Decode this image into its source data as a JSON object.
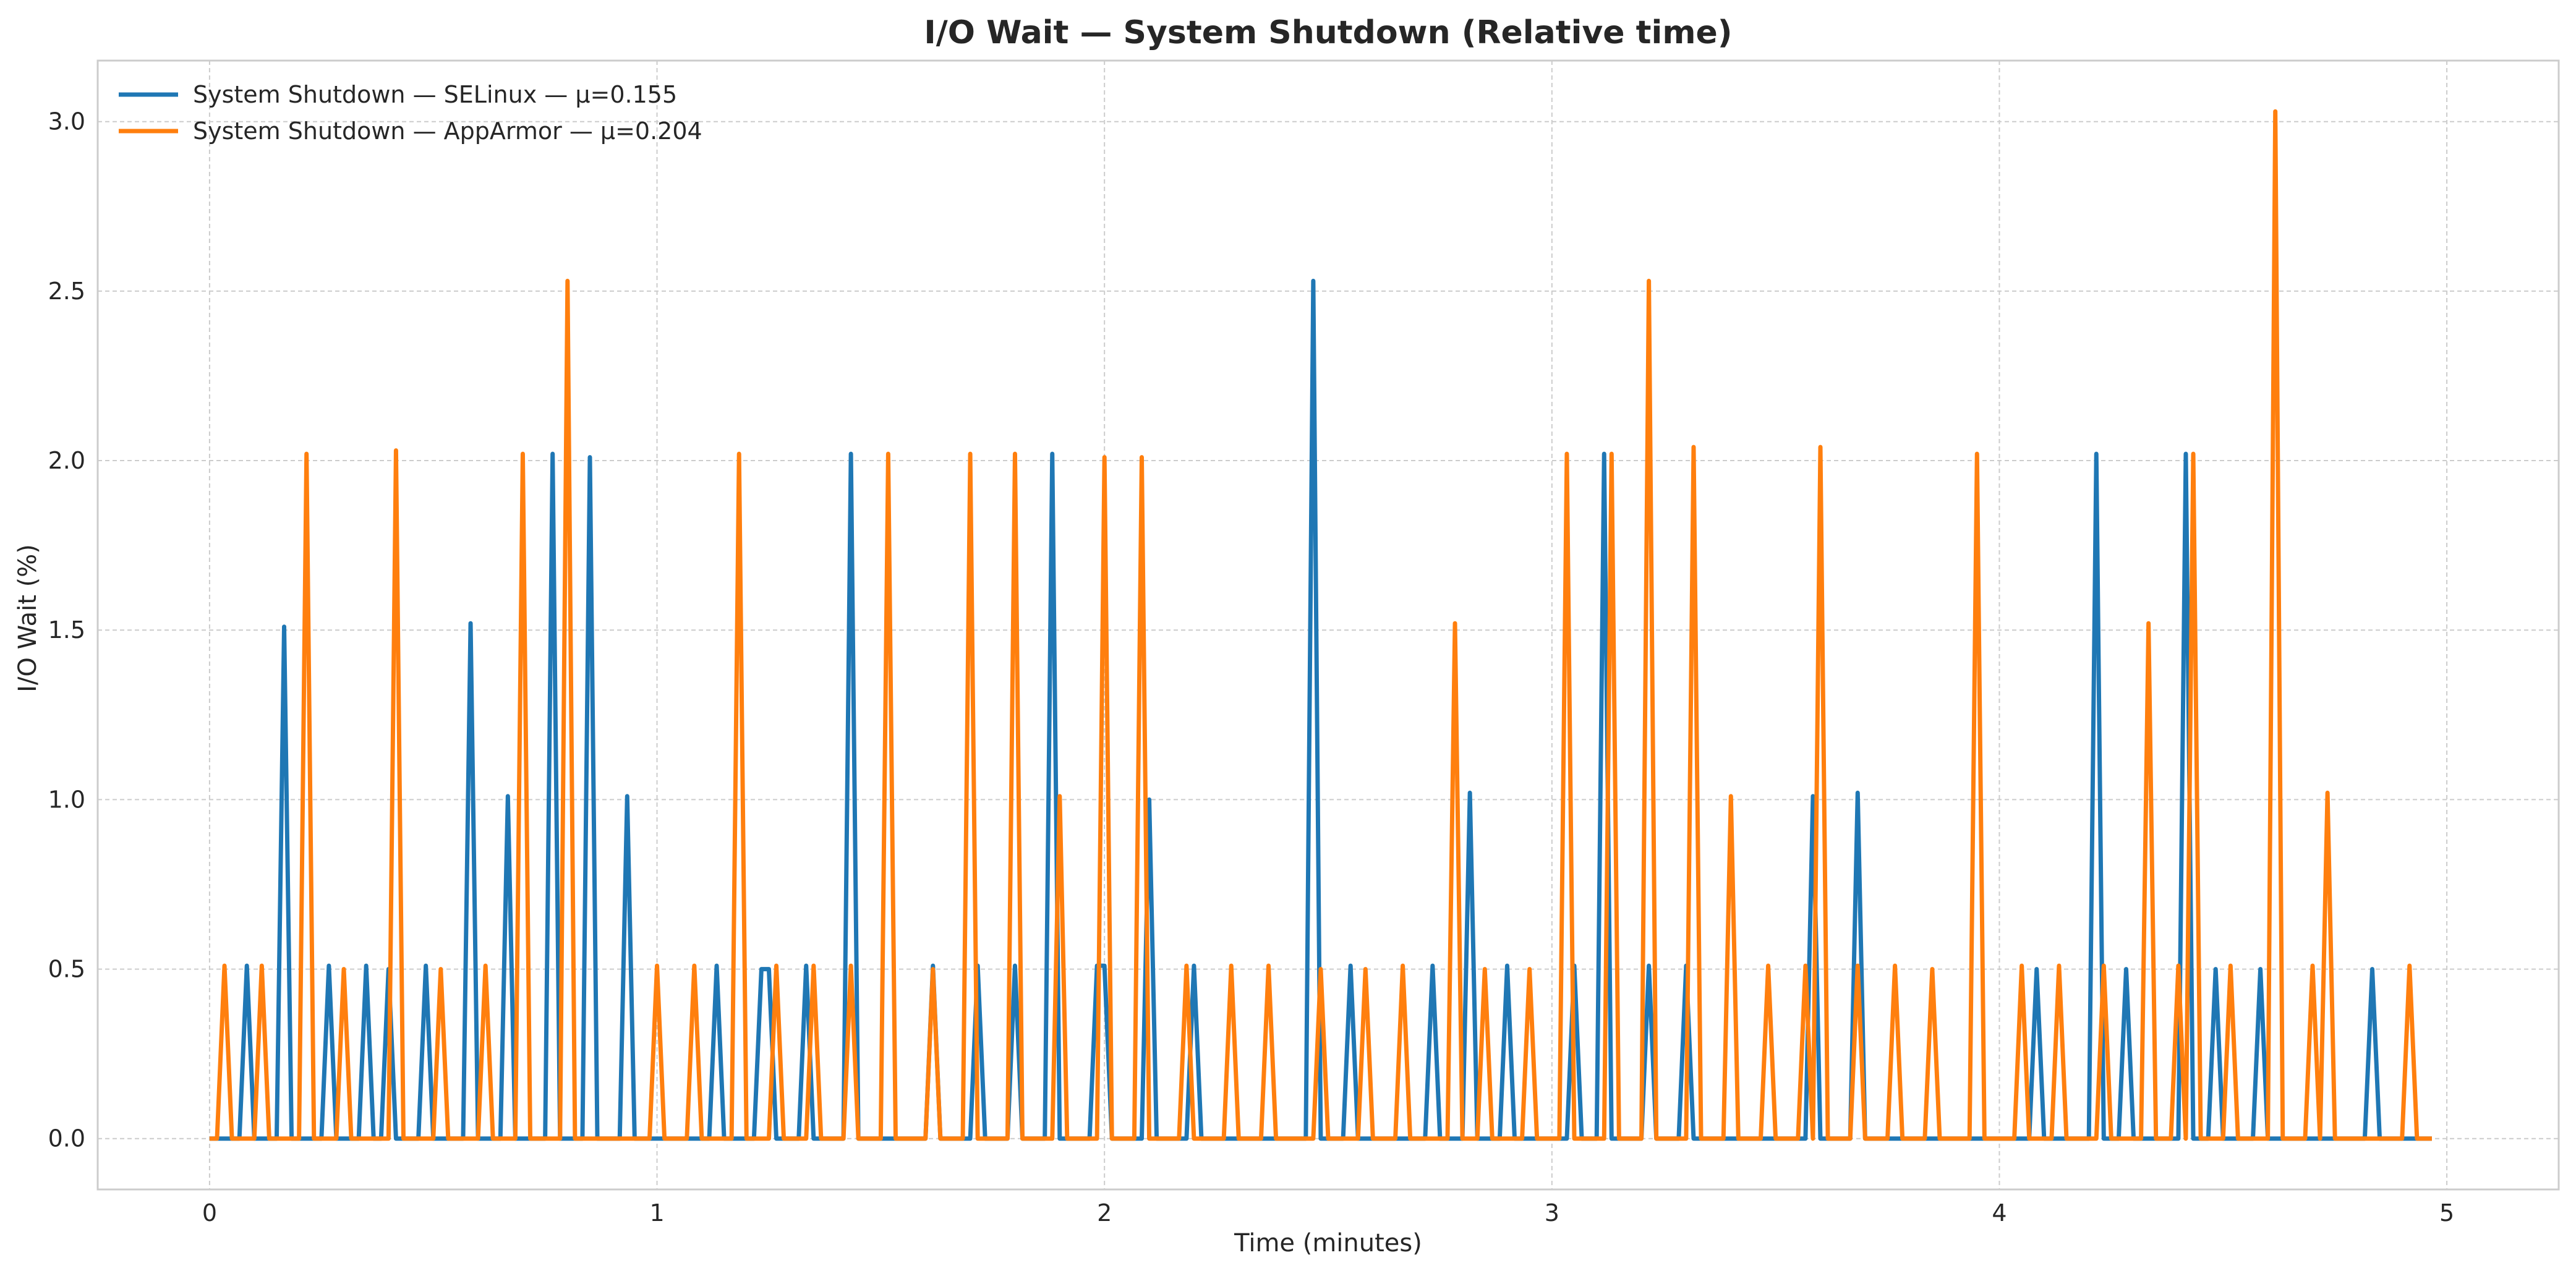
{
  "chart_data": {
    "type": "line",
    "title": "I/O Wait — System Shutdown (Relative time)",
    "xlabel": "Time (minutes)",
    "ylabel": "I/O Wait (%)",
    "xlim": [
      -0.25,
      5.25
    ],
    "ylim": [
      -0.15,
      3.18
    ],
    "xticks": [
      0,
      1,
      2,
      3,
      4,
      5
    ],
    "xtick_labels": [
      "0",
      "1",
      "2",
      "3",
      "4",
      "5"
    ],
    "yticks": [
      0.0,
      0.5,
      1.0,
      1.5,
      2.0,
      2.5,
      3.0
    ],
    "ytick_labels": [
      "0.0",
      "0.5",
      "1.0",
      "1.5",
      "2.0",
      "2.5",
      "3.0"
    ],
    "grid": true,
    "legend_position": "top-left",
    "series": [
      {
        "name": "System Shutdown — SELinux — μ=0.155",
        "color": "#1f77b4",
        "peaks": [
          [
            0.083,
            0.51
          ],
          [
            0.167,
            1.51
          ],
          [
            0.267,
            0.51
          ],
          [
            0.35,
            0.51
          ],
          [
            0.4,
            0.5
          ],
          [
            0.483,
            0.51
          ],
          [
            0.583,
            1.52
          ],
          [
            0.667,
            1.01
          ],
          [
            0.767,
            2.02
          ],
          [
            0.85,
            2.01
          ],
          [
            0.933,
            1.01
          ],
          [
            1.133,
            0.51
          ],
          [
            1.233,
            0.5
          ],
          [
            1.25,
            0.5
          ],
          [
            1.333,
            0.51
          ],
          [
            1.433,
            2.02
          ],
          [
            1.617,
            0.51
          ],
          [
            1.717,
            0.51
          ],
          [
            1.8,
            0.51
          ],
          [
            1.883,
            2.02
          ],
          [
            1.983,
            0.51
          ],
          [
            2.0,
            0.51
          ],
          [
            2.1,
            1.0
          ],
          [
            2.2,
            0.51
          ],
          [
            2.467,
            2.53
          ],
          [
            2.55,
            0.51
          ],
          [
            2.733,
            0.51
          ],
          [
            2.817,
            1.02
          ],
          [
            2.9,
            0.51
          ],
          [
            3.05,
            0.51
          ],
          [
            3.117,
            2.02
          ],
          [
            3.217,
            0.51
          ],
          [
            3.3,
            0.51
          ],
          [
            3.583,
            1.01
          ],
          [
            3.683,
            1.02
          ],
          [
            4.083,
            0.5
          ],
          [
            4.217,
            2.02
          ],
          [
            4.283,
            0.5
          ],
          [
            4.417,
            2.02
          ],
          [
            4.483,
            0.5
          ],
          [
            4.583,
            0.5
          ],
          [
            4.833,
            0.5
          ]
        ]
      },
      {
        "name": "System Shutdown — AppArmor — μ=0.204",
        "color": "#ff7f0e",
        "peaks": [
          [
            0.033,
            0.51
          ],
          [
            0.117,
            0.51
          ],
          [
            0.217,
            2.02
          ],
          [
            0.3,
            0.5
          ],
          [
            0.417,
            2.03
          ],
          [
            0.517,
            0.5
          ],
          [
            0.617,
            0.51
          ],
          [
            0.7,
            2.02
          ],
          [
            0.8,
            2.53
          ],
          [
            1.0,
            0.51
          ],
          [
            1.083,
            0.51
          ],
          [
            1.183,
            2.02
          ],
          [
            1.267,
            0.51
          ],
          [
            1.35,
            0.51
          ],
          [
            1.433,
            0.51
          ],
          [
            1.517,
            2.02
          ],
          [
            1.617,
            0.5
          ],
          [
            1.7,
            2.02
          ],
          [
            1.8,
            2.02
          ],
          [
            1.9,
            1.01
          ],
          [
            2.0,
            2.01
          ],
          [
            2.083,
            2.01
          ],
          [
            2.183,
            0.51
          ],
          [
            2.283,
            0.51
          ],
          [
            2.367,
            0.51
          ],
          [
            2.483,
            0.5
          ],
          [
            2.583,
            0.5
          ],
          [
            2.667,
            0.51
          ],
          [
            2.783,
            1.52
          ],
          [
            2.85,
            0.5
          ],
          [
            2.95,
            0.5
          ],
          [
            3.033,
            2.02
          ],
          [
            3.133,
            2.02
          ],
          [
            3.217,
            2.53
          ],
          [
            3.317,
            2.04
          ],
          [
            3.4,
            1.01
          ],
          [
            3.483,
            0.51
          ],
          [
            3.567,
            0.51
          ],
          [
            3.6,
            2.04
          ],
          [
            3.683,
            0.51
          ],
          [
            3.767,
            0.51
          ],
          [
            3.85,
            0.5
          ],
          [
            3.95,
            2.02
          ],
          [
            4.05,
            0.51
          ],
          [
            4.133,
            0.51
          ],
          [
            4.233,
            0.51
          ],
          [
            4.333,
            1.52
          ],
          [
            4.4,
            0.51
          ],
          [
            4.433,
            2.02
          ],
          [
            4.517,
            0.51
          ],
          [
            4.617,
            3.03
          ],
          [
            4.7,
            0.51
          ],
          [
            4.733,
            1.02
          ],
          [
            4.917,
            0.51
          ]
        ]
      }
    ]
  }
}
